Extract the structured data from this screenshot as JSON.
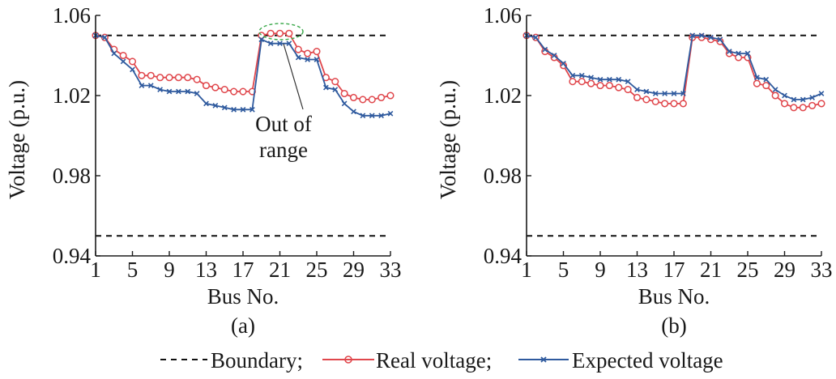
{
  "legend": {
    "boundary_label": "Boundary;",
    "real_label": "Real voltage;",
    "expected_label": "Expected voltage"
  },
  "annotation": {
    "line1": "Out of",
    "line2": "range"
  },
  "colors": {
    "real": "#e0474c",
    "expected": "#2f5a9e",
    "boundary": "#111111",
    "highlight": "#3aa84a"
  },
  "chart_data": [
    {
      "type": "line",
      "panel_label": "(a)",
      "xlabel": "Bus No.",
      "ylabel": "Voltage (p.u.)",
      "xlim": [
        1,
        33
      ],
      "ylim": [
        0.94,
        1.06
      ],
      "xticks": [
        1,
        5,
        9,
        13,
        17,
        21,
        25,
        29,
        33
      ],
      "yticks": [
        0.94,
        0.98,
        1.02,
        1.06
      ],
      "ytick_labels": [
        "0.94",
        "0.98",
        "1.02",
        "1.06"
      ],
      "boundaries": [
        1.05,
        0.95
      ],
      "x": [
        1,
        2,
        3,
        4,
        5,
        6,
        7,
        8,
        9,
        10,
        11,
        12,
        13,
        14,
        15,
        16,
        17,
        18,
        19,
        20,
        21,
        22,
        23,
        24,
        25,
        26,
        27,
        28,
        29,
        30,
        31,
        32,
        33
      ],
      "series": [
        {
          "name": "Real voltage",
          "marker": "circle",
          "values": [
            1.05,
            1.049,
            1.043,
            1.04,
            1.037,
            1.03,
            1.03,
            1.029,
            1.029,
            1.029,
            1.029,
            1.028,
            1.025,
            1.024,
            1.023,
            1.022,
            1.022,
            1.022,
            1.05,
            1.051,
            1.051,
            1.051,
            1.043,
            1.041,
            1.042,
            1.029,
            1.027,
            1.021,
            1.019,
            1.018,
            1.018,
            1.019,
            1.02
          ]
        },
        {
          "name": "Expected voltage",
          "marker": "x",
          "values": [
            1.05,
            1.049,
            1.041,
            1.037,
            1.033,
            1.025,
            1.025,
            1.023,
            1.022,
            1.022,
            1.022,
            1.021,
            1.016,
            1.015,
            1.014,
            1.013,
            1.013,
            1.013,
            1.048,
            1.046,
            1.046,
            1.046,
            1.039,
            1.038,
            1.038,
            1.024,
            1.023,
            1.016,
            1.012,
            1.01,
            1.01,
            1.01,
            1.011
          ]
        }
      ]
    },
    {
      "type": "line",
      "panel_label": "(b)",
      "xlabel": "Bus No.",
      "ylabel": "Voltage (p.u.)",
      "xlim": [
        1,
        33
      ],
      "ylim": [
        0.94,
        1.06
      ],
      "xticks": [
        1,
        5,
        9,
        13,
        17,
        21,
        25,
        29,
        33
      ],
      "yticks": [
        0.94,
        0.98,
        1.02,
        1.06
      ],
      "ytick_labels": [
        "0.94",
        "0.98",
        "1.02",
        "1.06"
      ],
      "boundaries": [
        1.05,
        0.95
      ],
      "x": [
        1,
        2,
        3,
        4,
        5,
        6,
        7,
        8,
        9,
        10,
        11,
        12,
        13,
        14,
        15,
        16,
        17,
        18,
        19,
        20,
        21,
        22,
        23,
        24,
        25,
        26,
        27,
        28,
        29,
        30,
        31,
        32,
        33
      ],
      "series": [
        {
          "name": "Real voltage",
          "marker": "circle",
          "values": [
            1.05,
            1.049,
            1.042,
            1.039,
            1.035,
            1.027,
            1.027,
            1.026,
            1.025,
            1.025,
            1.024,
            1.023,
            1.019,
            1.018,
            1.017,
            1.016,
            1.016,
            1.016,
            1.049,
            1.049,
            1.048,
            1.047,
            1.041,
            1.039,
            1.039,
            1.026,
            1.025,
            1.02,
            1.016,
            1.014,
            1.014,
            1.015,
            1.016
          ]
        },
        {
          "name": "Expected voltage",
          "marker": "x",
          "values": [
            1.05,
            1.049,
            1.043,
            1.04,
            1.036,
            1.03,
            1.03,
            1.029,
            1.028,
            1.028,
            1.028,
            1.027,
            1.023,
            1.022,
            1.021,
            1.021,
            1.021,
            1.021,
            1.05,
            1.05,
            1.049,
            1.048,
            1.042,
            1.041,
            1.041,
            1.029,
            1.028,
            1.023,
            1.02,
            1.018,
            1.018,
            1.019,
            1.021
          ]
        }
      ]
    }
  ]
}
